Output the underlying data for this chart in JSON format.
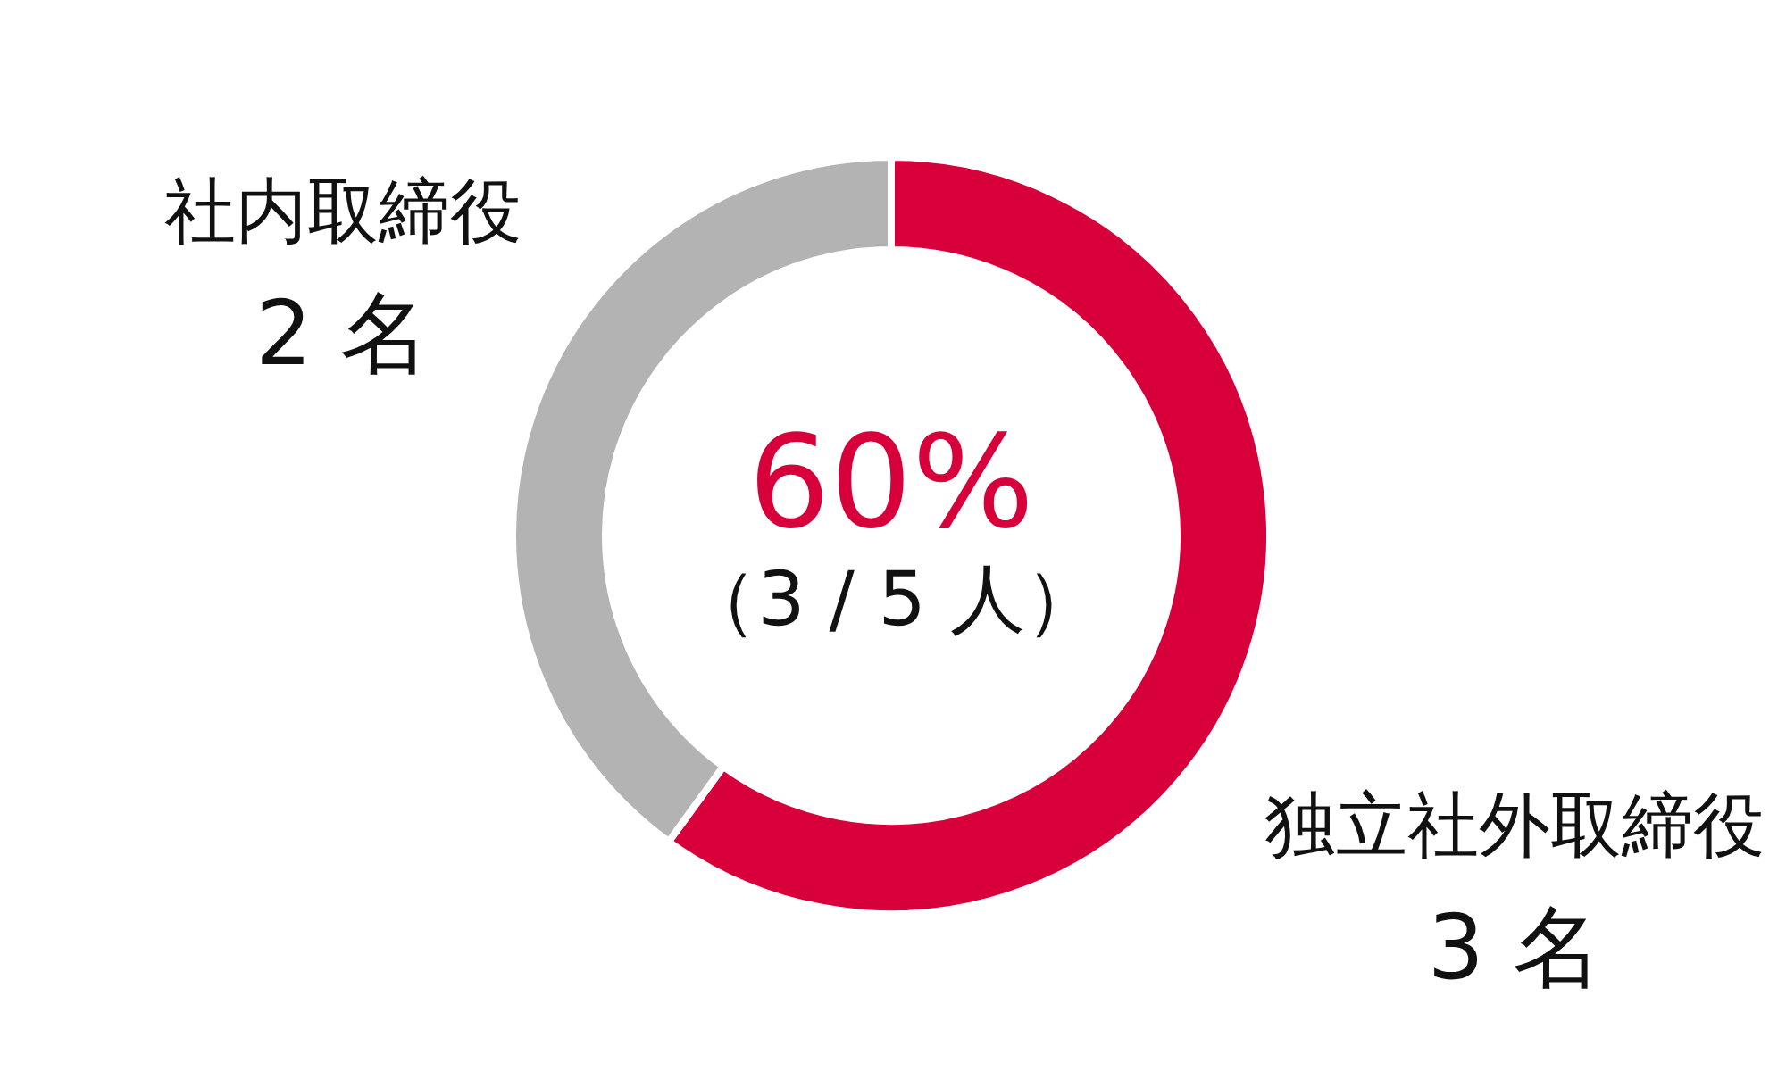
{
  "chart_data": {
    "type": "donut",
    "categories": [
      "独立社外取締役",
      "社内取締役"
    ],
    "values": [
      3,
      2
    ],
    "colors": [
      "#d7003a",
      "#b3b3b3"
    ],
    "value_labels": [
      "3 名",
      "2 名"
    ],
    "annotations": [
      "60%",
      "（3 / 5 人）"
    ]
  }
}
